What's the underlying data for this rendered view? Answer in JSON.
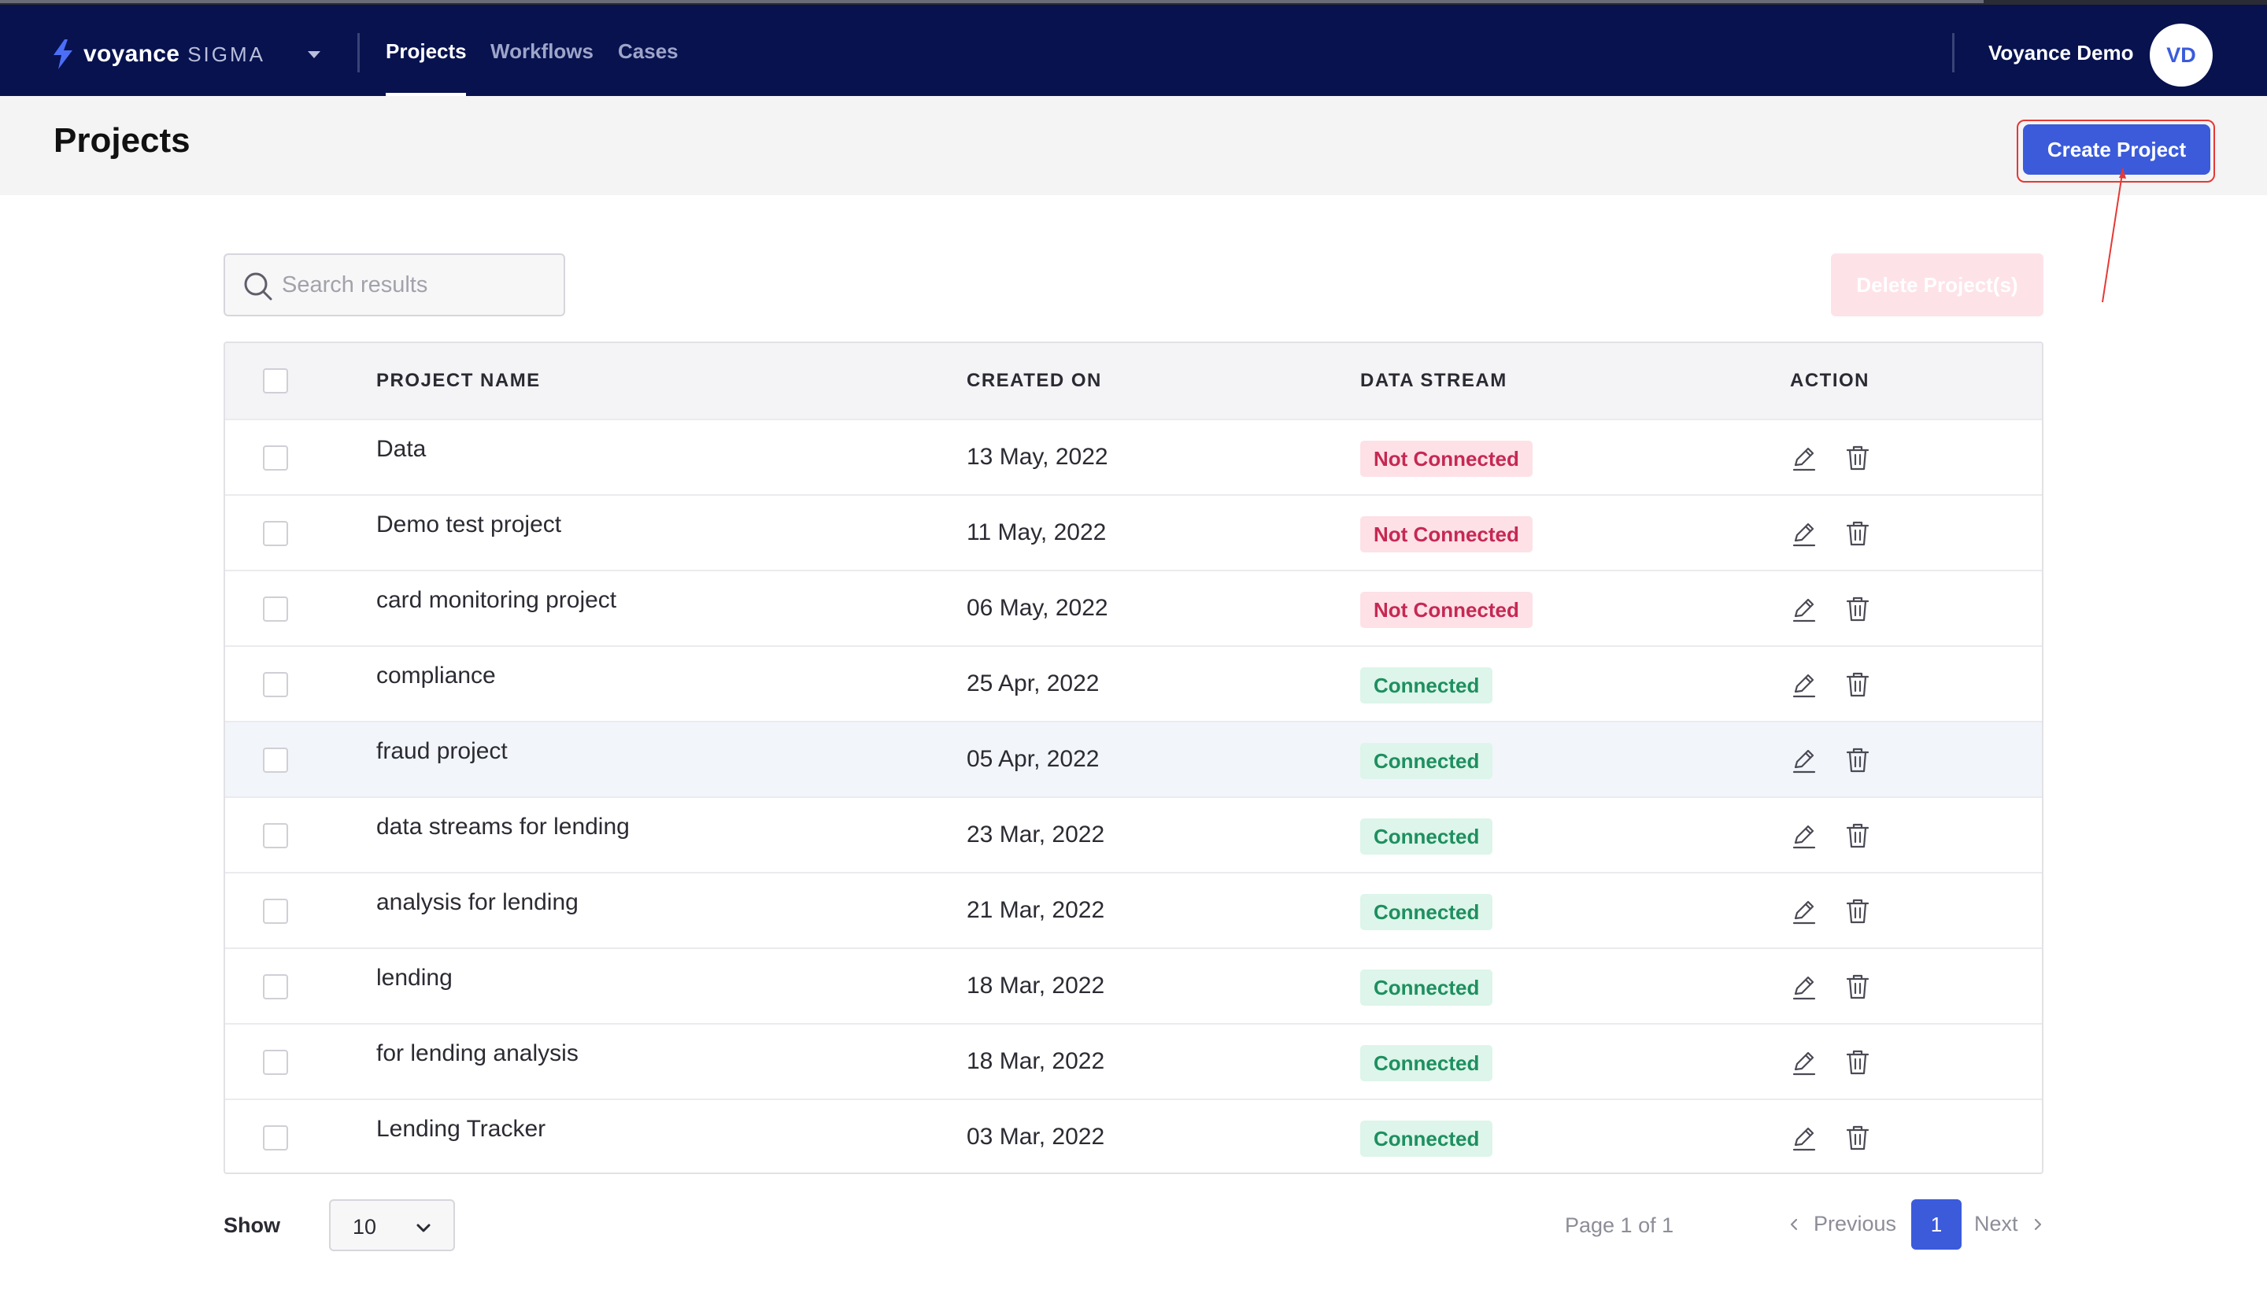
{
  "nav": {
    "brand_name": "voyance",
    "brand_sub": "SIGMA",
    "tabs": [
      {
        "label": "Projects",
        "active": true
      },
      {
        "label": "Workflows",
        "active": false
      },
      {
        "label": "Cases",
        "active": false
      }
    ],
    "user_name": "Voyance Demo",
    "avatar_initials": "VD"
  },
  "header": {
    "title": "Projects",
    "create_label": "Create Project"
  },
  "toolbar": {
    "search_placeholder": "Search results",
    "delete_label": "Delete Project(s)"
  },
  "table": {
    "columns": [
      "PROJECT NAME",
      "CREATED ON",
      "DATA STREAM",
      "ACTION"
    ],
    "rows": [
      {
        "name": "Data",
        "created": "13 May, 2022",
        "stream": "Not Connected",
        "connected": false
      },
      {
        "name": "Demo test project",
        "created": "11 May, 2022",
        "stream": "Not Connected",
        "connected": false
      },
      {
        "name": "card monitoring project",
        "created": "06 May, 2022",
        "stream": "Not Connected",
        "connected": false
      },
      {
        "name": "compliance",
        "created": "25 Apr, 2022",
        "stream": "Connected",
        "connected": true
      },
      {
        "name": "fraud project",
        "created": "05 Apr, 2022",
        "stream": "Connected",
        "connected": true,
        "highlighted": true
      },
      {
        "name": "data streams for lending",
        "created": "23 Mar, 2022",
        "stream": "Connected",
        "connected": true
      },
      {
        "name": "analysis for lending",
        "created": "21 Mar, 2022",
        "stream": "Connected",
        "connected": true
      },
      {
        "name": "lending",
        "created": "18 Mar, 2022",
        "stream": "Connected",
        "connected": true
      },
      {
        "name": "for lending analysis",
        "created": "18 Mar, 2022",
        "stream": "Connected",
        "connected": true
      },
      {
        "name": "Lending Tracker",
        "created": "03 Mar, 2022",
        "stream": "Connected",
        "connected": true
      }
    ]
  },
  "footer": {
    "show_label": "Show",
    "page_size": "10",
    "page_info": "Page 1 of 1",
    "prev_label": "Previous",
    "current_page": "1",
    "next_label": "Next"
  },
  "colors": {
    "nav_bg": "#07124f",
    "accent": "#3b5bdb",
    "not_connected_bg": "#fde1e6",
    "not_connected_text": "#c62853",
    "connected_bg": "#ddf5ea",
    "connected_text": "#1e8f5f",
    "annotation": "#e53935"
  },
  "icons": [
    "brand-bolt-icon",
    "chevron-down-icon",
    "search-icon",
    "edit-pencil-icon",
    "trash-icon",
    "chevron-left-icon",
    "chevron-right-icon"
  ]
}
